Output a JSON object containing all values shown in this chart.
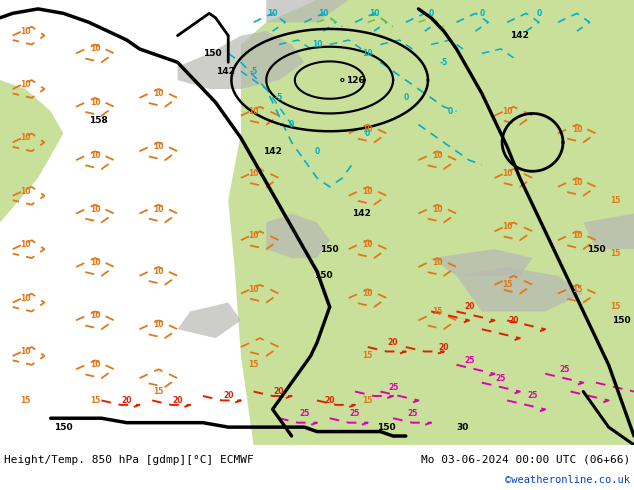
{
  "title_left": "Height/Temp. 850 hPa [gdmp][°C] ECMWF",
  "title_right": "Mo 03-06-2024 00:00 UTC (06+66)",
  "credit": "©weatheronline.co.uk",
  "color_ocean": "#e8e8e4",
  "color_land_green": "#c8e09a",
  "color_land_green2": "#b8d480",
  "color_terrain_gray": "#b8b8b4",
  "color_black": "#000000",
  "color_orange": "#e07818",
  "color_cyan": "#00b0c8",
  "color_green_line": "#80c030",
  "color_red": "#e02000",
  "color_pink": "#e000b0",
  "lw_major": 2.2,
  "lw_minor": 1.4,
  "label_fs": 6.5
}
